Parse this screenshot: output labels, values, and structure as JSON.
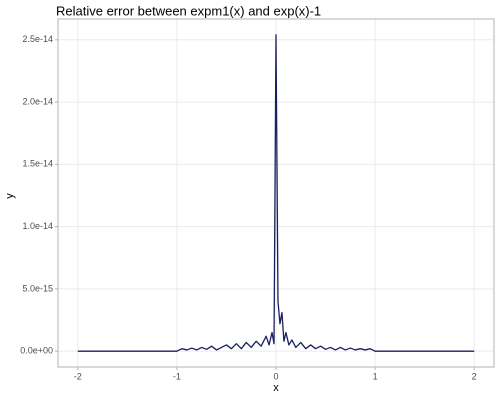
{
  "chart_data": {
    "type": "line",
    "title": "Relative error between expm1(x) and exp(x)-1",
    "x_label": "x",
    "y_label": "y",
    "x": [
      -2,
      -1.5,
      -1.0,
      -0.95,
      -0.9,
      -0.85,
      -0.8,
      -0.75,
      -0.7,
      -0.65,
      -0.6,
      -0.55,
      -0.5,
      -0.45,
      -0.4,
      -0.35,
      -0.3,
      -0.25,
      -0.2,
      -0.15,
      -0.1,
      -0.07,
      -0.04,
      -0.02,
      0,
      0.02,
      0.04,
      0.06,
      0.08,
      0.1,
      0.13,
      0.16,
      0.2,
      0.25,
      0.3,
      0.35,
      0.4,
      0.45,
      0.5,
      0.55,
      0.6,
      0.65,
      0.7,
      0.75,
      0.8,
      0.85,
      0.9,
      0.95,
      1.0,
      1.5,
      2
    ],
    "series": [
      {
        "name": "y",
        "color": "#1a1f5e",
        "values": [
          0,
          0,
          0,
          2e-16,
          1e-16,
          2.5e-16,
          1e-16,
          3e-16,
          1.5e-16,
          4e-16,
          1e-16,
          3e-16,
          5e-16,
          2e-16,
          6e-16,
          2e-16,
          7e-16,
          3e-16,
          8e-16,
          4e-16,
          1.2e-15,
          5e-16,
          1.5e-15,
          6e-16,
          2.54e-14,
          4e-15,
          2.2e-15,
          3.1e-15,
          8e-16,
          1.5e-15,
          5e-16,
          9e-16,
          3e-16,
          7e-16,
          2e-16,
          5e-16,
          2e-16,
          4e-16,
          1.5e-16,
          3e-16,
          1e-16,
          3e-16,
          1e-16,
          2.5e-16,
          1e-16,
          2e-16,
          1e-16,
          2e-16,
          0,
          0,
          0
        ]
      }
    ],
    "xlim": [
      -2.2,
      2.2
    ],
    "xticks": [
      -2,
      -1,
      0,
      1,
      2
    ],
    "ylim": [
      -1.27e-15,
      2.667e-14
    ],
    "yticks": [
      {
        "value": 0,
        "label": "0.0e+00"
      },
      {
        "value": 5e-15,
        "label": "5.0e-15"
      },
      {
        "value": 1e-14,
        "label": "1.0e-14"
      },
      {
        "value": 1.5e-14,
        "label": "1.5e-14"
      },
      {
        "value": 2e-14,
        "label": "2.0e-14"
      },
      {
        "value": 2.5e-14,
        "label": "2.5e-14"
      }
    ],
    "grid": true
  }
}
